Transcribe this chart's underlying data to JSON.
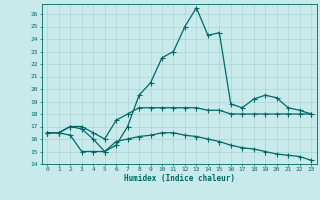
{
  "xlabel": "Humidex (Indice chaleur)",
  "background_color": "#c8eaea",
  "grid_color": "#a8cece",
  "line_color": "#006868",
  "xlim": [
    -0.5,
    23.5
  ],
  "ylim": [
    14,
    26.8
  ],
  "xticks": [
    0,
    1,
    2,
    3,
    4,
    5,
    6,
    7,
    8,
    9,
    10,
    11,
    12,
    13,
    14,
    15,
    16,
    17,
    18,
    19,
    20,
    21,
    22,
    23
  ],
  "yticks": [
    14,
    15,
    16,
    17,
    18,
    19,
    20,
    21,
    22,
    23,
    24,
    25,
    26
  ],
  "line_peak_x": [
    0,
    1,
    2,
    3,
    4,
    5,
    6,
    7,
    8,
    9,
    10,
    11,
    12,
    13,
    14,
    15,
    16,
    17,
    18,
    19,
    20,
    21,
    22,
    23
  ],
  "line_peak_y": [
    16.5,
    16.5,
    17.0,
    16.8,
    16.0,
    15.0,
    15.5,
    17.0,
    19.5,
    20.5,
    22.5,
    23.0,
    25.0,
    26.5,
    24.3,
    24.5,
    18.8,
    18.5,
    19.2,
    19.5,
    19.3,
    18.5,
    18.3,
    18.0
  ],
  "line_mid_x": [
    0,
    1,
    2,
    3,
    4,
    5,
    6,
    7,
    8,
    9,
    10,
    11,
    12,
    13,
    14,
    15,
    16,
    17,
    18,
    19,
    20,
    21,
    22,
    23
  ],
  "line_mid_y": [
    16.5,
    16.5,
    17.0,
    17.0,
    16.5,
    16.0,
    17.5,
    18.0,
    18.5,
    18.5,
    18.5,
    18.5,
    18.5,
    18.5,
    18.3,
    18.3,
    18.0,
    18.0,
    18.0,
    18.0,
    18.0,
    18.0,
    18.0,
    18.0
  ],
  "line_low_x": [
    0,
    1,
    2,
    3,
    4,
    5,
    6,
    7,
    8,
    9,
    10,
    11,
    12,
    13,
    14,
    15,
    16,
    17,
    18,
    19,
    20,
    21,
    22,
    23
  ],
  "line_low_y": [
    16.5,
    16.5,
    16.3,
    15.0,
    15.0,
    15.0,
    15.8,
    16.0,
    16.2,
    16.3,
    16.5,
    16.5,
    16.3,
    16.2,
    16.0,
    15.8,
    15.5,
    15.3,
    15.2,
    15.0,
    14.8,
    14.7,
    14.6,
    14.3
  ]
}
